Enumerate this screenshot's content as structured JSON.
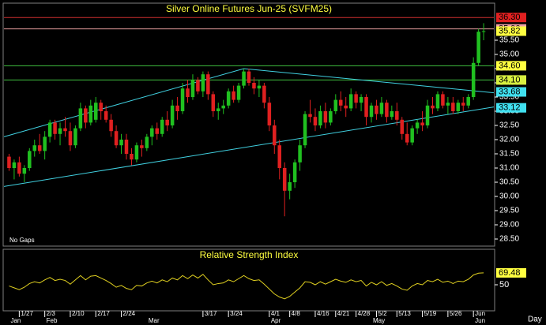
{
  "chart_data": {
    "type": "candlestick",
    "title": "Silver Online Futures Jun-25 (SVFM25)",
    "note": "No Gaps",
    "period": "Day",
    "up_color": "#20c020",
    "down_color": "#e02020",
    "xlim": [
      -1,
      95
    ],
    "ylim": [
      28.25,
      36.75
    ],
    "yticks": [
      {
        "value": 28.5,
        "label": "28.50"
      },
      {
        "value": 29,
        "label": "29.00"
      },
      {
        "value": 29.5,
        "label": "29.50"
      },
      {
        "value": 30,
        "label": "30.00"
      },
      {
        "value": 30.5,
        "label": "30.50"
      },
      {
        "value": 31,
        "label": "31.00"
      },
      {
        "value": 31.5,
        "label": "31.50"
      },
      {
        "value": 32,
        "label": "32.00"
      },
      {
        "value": 32.5,
        "label": "32.50"
      },
      {
        "value": 33,
        "label": "33.00"
      },
      {
        "value": 33.5,
        "label": "33.50"
      },
      {
        "value": 34,
        "label": "34.00"
      },
      {
        "value": 34.5,
        "label": "34.50"
      },
      {
        "value": 35,
        "label": "35.00"
      },
      {
        "value": 35.5,
        "label": "35.50"
      }
    ],
    "date_labels": [
      {
        "index": 2,
        "label": "1/27"
      },
      {
        "index": 7,
        "label": "2/3"
      },
      {
        "index": 12,
        "label": "2/10"
      },
      {
        "index": 17,
        "label": "2/17"
      },
      {
        "index": 22,
        "label": "2/24"
      },
      {
        "index": 38,
        "label": "3/17"
      },
      {
        "index": 43,
        "label": "3/24"
      },
      {
        "index": 51,
        "label": "4/1"
      },
      {
        "index": 55,
        "label": "4/8"
      },
      {
        "index": 60,
        "label": "4/16"
      },
      {
        "index": 64,
        "label": "4/21"
      },
      {
        "index": 68,
        "label": "4/28"
      },
      {
        "index": 72,
        "label": "5/2"
      },
      {
        "index": 76,
        "label": "5/13"
      },
      {
        "index": 81,
        "label": "5/19"
      },
      {
        "index": 86,
        "label": "5/26"
      },
      {
        "index": 91,
        "label": "Jun"
      }
    ],
    "month_labels": [
      {
        "index": 0,
        "label": "Jan"
      },
      {
        "index": 7,
        "label": "Feb"
      },
      {
        "index": 27,
        "label": "Mar"
      },
      {
        "index": 51,
        "label": "Apr"
      },
      {
        "index": 71,
        "label": "May"
      },
      {
        "index": 91,
        "label": "Jun"
      }
    ],
    "hlines": [
      {
        "value": 36.3,
        "color": "#d03030"
      },
      {
        "value": 35.9,
        "color": "#e8a0a0"
      },
      {
        "value": 34.6,
        "color": "#40c040"
      },
      {
        "value": 34.1,
        "color": "#40c040"
      }
    ],
    "trendlines": [
      {
        "color": "#40d0e0",
        "points": [
          [
            -1,
            32.1
          ],
          [
            46,
            34.5
          ],
          [
            95,
            33.65
          ]
        ]
      },
      {
        "color": "#40d0e0",
        "points": [
          [
            -1,
            30.35
          ],
          [
            95,
            33.15
          ]
        ]
      }
    ],
    "price_labels": [
      {
        "value": 36.3,
        "label": "36.30",
        "color": "#e02020"
      },
      {
        "value": 35.9,
        "label": "35.90",
        "color": "#f0a0a8"
      },
      {
        "value": 35.82,
        "label": "35.82",
        "color": "#ffff40"
      },
      {
        "value": 34.6,
        "label": "34.60",
        "color": "#ffff40"
      },
      {
        "value": 34.1,
        "label": "34.10",
        "color": "#d8f040"
      },
      {
        "value": 33.68,
        "label": "33.68",
        "color": "#40e0f0"
      },
      {
        "value": 33.12,
        "label": "33.12",
        "color": "#40e0f0"
      }
    ],
    "candles": [
      [
        31.4,
        31.5,
        30.9,
        31.0
      ],
      [
        31.0,
        31.3,
        30.6,
        31.2
      ],
      [
        31.2,
        31.4,
        30.7,
        30.8
      ],
      [
        30.8,
        31.1,
        30.5,
        31.0
      ],
      [
        31.0,
        31.7,
        30.9,
        31.6
      ],
      [
        31.6,
        32.0,
        31.4,
        31.8
      ],
      [
        31.8,
        32.2,
        31.5,
        31.6
      ],
      [
        31.6,
        32.3,
        31.3,
        32.1
      ],
      [
        32.1,
        32.7,
        31.9,
        32.6
      ],
      [
        32.6,
        32.7,
        32.0,
        32.2
      ],
      [
        32.2,
        32.6,
        31.8,
        32.4
      ],
      [
        32.4,
        32.8,
        32.1,
        32.3
      ],
      [
        32.3,
        32.6,
        31.6,
        31.8
      ],
      [
        31.8,
        32.5,
        31.7,
        32.4
      ],
      [
        32.4,
        33.3,
        32.3,
        33.1
      ],
      [
        33.1,
        33.2,
        32.4,
        32.6
      ],
      [
        32.6,
        33.4,
        32.5,
        33.2
      ],
      [
        32.7,
        33.5,
        32.6,
        33.3
      ],
      [
        33.3,
        33.4,
        32.7,
        33.0
      ],
      [
        33.0,
        33.2,
        32.6,
        32.7
      ],
      [
        32.7,
        32.9,
        32.1,
        32.3
      ],
      [
        32.3,
        32.5,
        31.7,
        31.8
      ],
      [
        31.8,
        32.2,
        31.5,
        32.0
      ],
      [
        32.0,
        32.2,
        31.3,
        31.5
      ],
      [
        31.5,
        31.7,
        31.1,
        31.3
      ],
      [
        31.3,
        31.9,
        31.2,
        31.8
      ],
      [
        31.8,
        32.0,
        31.4,
        31.7
      ],
      [
        31.7,
        32.2,
        31.6,
        32.1
      ],
      [
        32.1,
        32.5,
        31.8,
        32.4
      ],
      [
        32.4,
        32.6,
        32.0,
        32.2
      ],
      [
        32.2,
        32.8,
        32.1,
        32.7
      ],
      [
        32.7,
        33.0,
        32.3,
        32.5
      ],
      [
        32.5,
        33.4,
        32.4,
        33.2
      ],
      [
        33.2,
        33.5,
        32.7,
        33.0
      ],
      [
        33.0,
        34.0,
        32.9,
        33.8
      ],
      [
        33.8,
        34.1,
        33.3,
        33.5
      ],
      [
        33.5,
        34.3,
        33.4,
        34.1
      ],
      [
        34.1,
        34.2,
        33.6,
        33.7
      ],
      [
        33.7,
        34.4,
        33.5,
        34.3
      ],
      [
        34.3,
        34.4,
        33.4,
        33.6
      ],
      [
        33.6,
        33.7,
        32.8,
        33.0
      ],
      [
        33.0,
        33.3,
        32.7,
        33.1
      ],
      [
        33.1,
        33.4,
        32.9,
        33.2
      ],
      [
        33.2,
        33.8,
        33.1,
        33.7
      ],
      [
        33.7,
        33.9,
        33.3,
        33.4
      ],
      [
        33.4,
        34.0,
        33.3,
        33.9
      ],
      [
        33.9,
        34.5,
        33.8,
        34.4
      ],
      [
        34.4,
        34.5,
        33.9,
        34.0
      ],
      [
        34.0,
        34.2,
        33.6,
        33.8
      ],
      [
        33.8,
        34.1,
        33.5,
        33.9
      ],
      [
        33.9,
        34.0,
        33.1,
        33.3
      ],
      [
        33.3,
        33.5,
        32.3,
        32.5
      ],
      [
        32.5,
        32.7,
        31.5,
        31.8
      ],
      [
        31.8,
        32.0,
        30.6,
        31.0
      ],
      [
        31.0,
        31.2,
        29.3,
        30.2
      ],
      [
        30.2,
        30.8,
        29.9,
        30.5
      ],
      [
        30.5,
        31.3,
        30.3,
        31.2
      ],
      [
        31.2,
        32.0,
        30.9,
        31.8
      ],
      [
        31.8,
        33.0,
        31.7,
        32.9
      ],
      [
        32.9,
        33.4,
        32.6,
        32.8
      ],
      [
        32.8,
        33.1,
        32.3,
        32.5
      ],
      [
        32.5,
        33.2,
        32.4,
        33.0
      ],
      [
        33.0,
        33.3,
        32.4,
        32.6
      ],
      [
        32.6,
        33.1,
        32.5,
        33.0
      ],
      [
        33.0,
        33.6,
        32.9,
        33.4
      ],
      [
        33.4,
        33.7,
        33.0,
        33.2
      ],
      [
        33.2,
        33.5,
        32.8,
        33.1
      ],
      [
        33.1,
        33.8,
        33.0,
        33.6
      ],
      [
        33.6,
        33.7,
        33.1,
        33.3
      ],
      [
        33.3,
        33.6,
        33.0,
        33.5
      ],
      [
        33.5,
        33.6,
        32.5,
        32.8
      ],
      [
        32.8,
        33.3,
        32.6,
        33.2
      ],
      [
        33.2,
        33.4,
        32.7,
        32.9
      ],
      [
        32.9,
        33.5,
        32.8,
        33.3
      ],
      [
        33.3,
        33.4,
        32.6,
        32.8
      ],
      [
        32.8,
        33.2,
        32.7,
        33.0
      ],
      [
        33.0,
        33.3,
        32.5,
        32.7
      ],
      [
        32.7,
        32.8,
        32.0,
        32.2
      ],
      [
        32.2,
        32.6,
        31.8,
        31.9
      ],
      [
        31.9,
        32.5,
        31.8,
        32.4
      ],
      [
        32.4,
        32.7,
        32.2,
        32.6
      ],
      [
        32.6,
        33.0,
        32.3,
        32.5
      ],
      [
        32.5,
        33.4,
        32.4,
        33.2
      ],
      [
        33.2,
        33.5,
        32.9,
        33.1
      ],
      [
        33.1,
        33.7,
        33.0,
        33.6
      ],
      [
        33.6,
        33.7,
        33.1,
        33.2
      ],
      [
        33.2,
        33.5,
        32.9,
        33.3
      ],
      [
        33.3,
        33.5,
        32.9,
        33.0
      ],
      [
        33.0,
        33.4,
        32.9,
        33.3
      ],
      [
        33.3,
        33.5,
        33.0,
        33.2
      ],
      [
        33.2,
        33.6,
        33.1,
        33.5
      ],
      [
        33.5,
        34.9,
        33.4,
        34.7
      ],
      [
        34.7,
        35.9,
        34.6,
        35.8
      ],
      [
        35.8,
        36.1,
        35.5,
        35.82
      ]
    ],
    "rsi": {
      "title": "Relative Strength Index",
      "color": "#e0d020",
      "ylim": [
        10,
        90
      ],
      "yticks": [
        50
      ],
      "last_label": {
        "value": 69.48,
        "label": "69.48",
        "color": "#ffff40"
      },
      "values": [
        48,
        45,
        42,
        46,
        52,
        55,
        53,
        58,
        62,
        57,
        59,
        57,
        51,
        58,
        65,
        58,
        64,
        65,
        61,
        57,
        52,
        46,
        49,
        44,
        42,
        49,
        48,
        53,
        56,
        53,
        58,
        55,
        61,
        58,
        65,
        60,
        66,
        61,
        67,
        58,
        50,
        52,
        53,
        58,
        55,
        60,
        65,
        60,
        57,
        58,
        51,
        43,
        35,
        30,
        27,
        31,
        38,
        45,
        55,
        54,
        50,
        55,
        51,
        55,
        59,
        56,
        54,
        58,
        55,
        57,
        48,
        54,
        50,
        55,
        49,
        52,
        48,
        43,
        41,
        48,
        52,
        50,
        57,
        55,
        59,
        54,
        56,
        52,
        56,
        55,
        59,
        66,
        69,
        69.48
      ]
    }
  }
}
